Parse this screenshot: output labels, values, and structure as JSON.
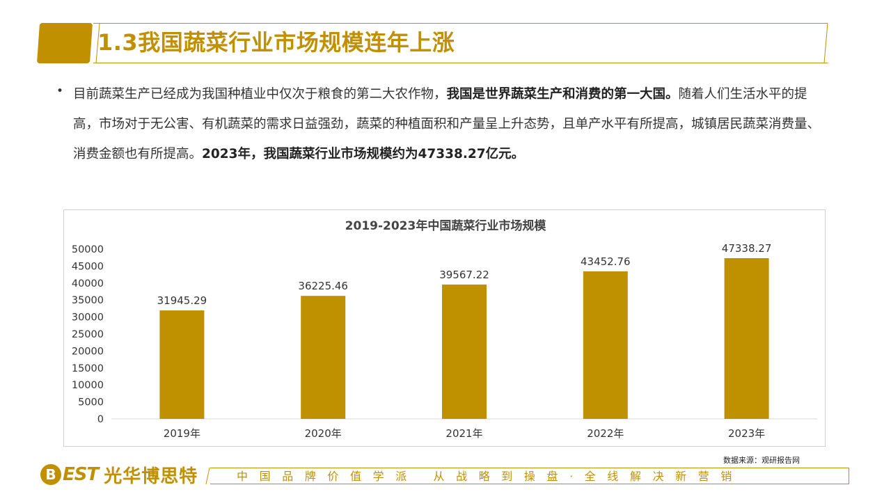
{
  "header": {
    "title": "1.3我国蔬菜行业市场规模连年上涨"
  },
  "body": {
    "bullet": "•",
    "text_normal_1": "目前蔬菜生产已经成为我国种植业中仅次于粮食的第二大农作物，",
    "text_bold_1": "我国是世界蔬菜生产和消费的第一大国。",
    "text_normal_2": "随着人们生活水平的提高，市场对于无公害、有机蔬菜的需求日益强劲，蔬菜的种植面积和产量呈上升态势，且单产水平有所提高，城镇居民蔬菜消费量、消费金额也有所提高。",
    "text_bold_2": "2023年，我国蔬菜行业市场规模约为47338.27亿元。"
  },
  "chart_data": {
    "type": "bar",
    "title": "2019-2023年中国蔬菜行业市场规模",
    "categories": [
      "2019年",
      "2020年",
      "2021年",
      "2022年",
      "2023年"
    ],
    "values": [
      31945.29,
      36225.46,
      39567.22,
      43452.76,
      47338.27
    ],
    "value_labels": [
      "31945.29",
      "36225.46",
      "39567.22",
      "43452.76",
      "47338.27"
    ],
    "ylim": [
      0,
      50000
    ],
    "yticks": [
      0,
      5000,
      10000,
      15000,
      20000,
      25000,
      30000,
      35000,
      40000,
      45000,
      50000
    ],
    "grid": false,
    "legend": "none",
    "bar_color": "#bf9000"
  },
  "source": "数据来源：观研报告网",
  "footer": {
    "logo_mark": "B",
    "logo_en": "EST",
    "logo_cn": "光华博思特",
    "slogan": "中国品牌价值学派 从战略到操盘·全线解决新营销"
  },
  "colors": {
    "accent": "#c09000"
  }
}
